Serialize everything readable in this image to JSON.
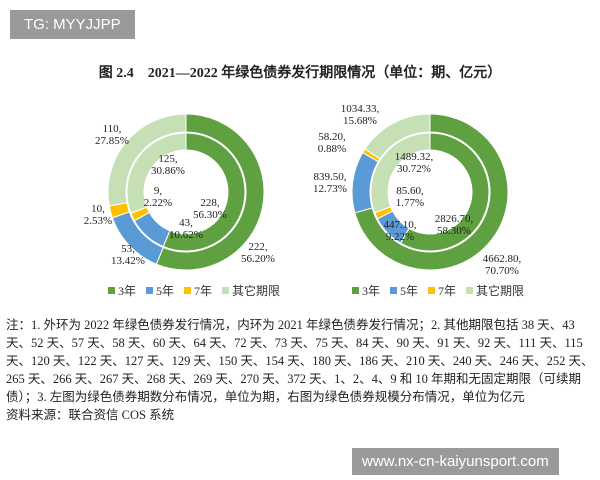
{
  "watermark_top": "TG: MYYJJPP",
  "watermark_bottom": "www.nx-cn-kaiyunsport.com",
  "title": "图 2.4　2021—2022 年绿色债券发行期限情况（单位：期、亿元）",
  "legend": [
    "3年",
    "5年",
    "7年",
    "其它期限"
  ],
  "colors": [
    "#5fa140",
    "#5b9bd5",
    "#ffc000",
    "#c5e0b4"
  ],
  "chart_data": [
    {
      "type": "donut",
      "categories": [
        "3年",
        "5年",
        "7年",
        "其它期限"
      ],
      "series": [
        {
          "ring": "outer",
          "values": [
            222,
            53,
            10,
            110
          ],
          "labels": [
            "222, 56.20%",
            "53, 13.42%",
            "10, 2.53%",
            "110, 27.85%"
          ]
        },
        {
          "ring": "inner",
          "values": [
            228,
            43,
            9,
            125
          ],
          "labels": [
            "228, 56.30%",
            "43, 10.62%",
            "9, 2.22%",
            "125, 30.86%"
          ]
        }
      ]
    },
    {
      "type": "donut",
      "categories": [
        "3年",
        "5年",
        "7年",
        "其它期限"
      ],
      "series": [
        {
          "ring": "outer",
          "values": [
            4662.8,
            839.5,
            58.2,
            1034.33
          ],
          "labels": [
            "4662.80, 70.70%",
            "839.50, 12.73%",
            "58.20, 0.88%",
            "1034.33, 15.68%"
          ]
        },
        {
          "ring": "inner",
          "values": [
            2826.7,
            447.1,
            85.6,
            1489.32
          ],
          "labels": [
            "2826.70, 58.30%",
            "447.10, 9.22%",
            "85.60, 1.77%",
            "1489.32, 30.72%"
          ]
        }
      ]
    }
  ],
  "note": "注：1. 外环为 2022 年绿色债券发行情况，内环为 2021 年绿色债券发行情况；2. 其他期限包括 38 天、43 天、52 天、57 天、58 天、60 天、64 天、72 天、73 天、75 天、84 天、90 天、91 天、92 天、111 天、115 天、120 天、122 天、127 天、129 天、150 天、154 天、180 天、186 天、210 天、240 天、246 天、252 天、265 天、266 天、267 天、268 天、269 天、270 天、372 天、1、2、4、9 和 10 年期和无固定期限（可续期债）；3. 左图为绿色债券期数分布情况，单位为期，右图为绿色债券规模分布情况，单位为亿元",
  "source": "资料来源：联合资信 COS 系统"
}
